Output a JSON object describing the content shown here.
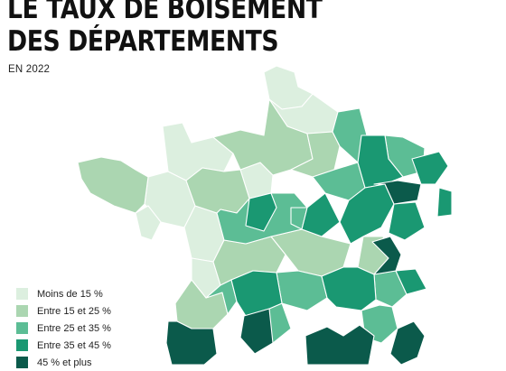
{
  "title_lines": [
    "LE TAUX DE BOISEMENT",
    "DES DÉPARTEMENTS"
  ],
  "subtitle": "EN 2022",
  "legend": [
    {
      "label": "Moins de 15 %",
      "color": "#dcefdf"
    },
    {
      "label": "Entre 15 et 25 %",
      "color": "#abd6b1"
    },
    {
      "label": "Entre 25 et 35 %",
      "color": "#5cbd95"
    },
    {
      "label": "Entre 35 et 45 %",
      "color": "#1a9872"
    },
    {
      "label": "45 % et plus",
      "color": "#0b5a4b"
    }
  ],
  "map": {
    "name": "france-departements",
    "classes_by_region": {
      "nord-normandie-ouest": 0,
      "bretagne-centre": 1,
      "est": 2,
      "vosges-alpes-centre": 3,
      "landes-massif-central-sud-est": 4
    }
  }
}
